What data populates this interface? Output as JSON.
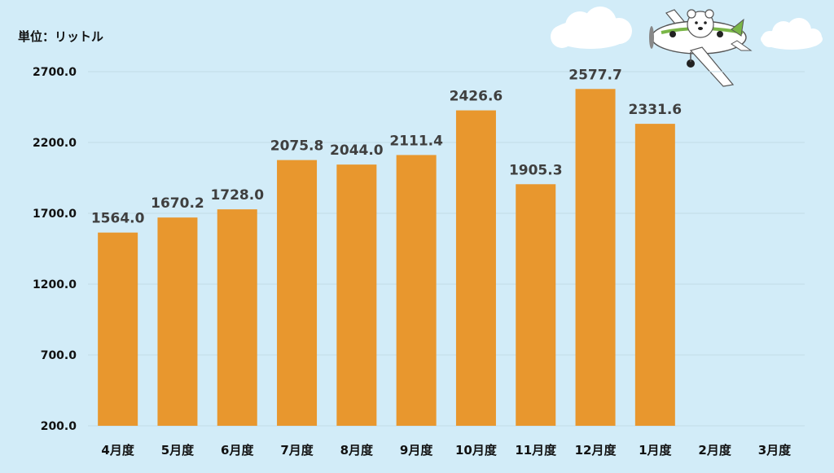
{
  "chart_data": {
    "type": "bar",
    "unit_label": "単位：リットル",
    "categories": [
      "4月度",
      "5月度",
      "6月度",
      "7月度",
      "8月度",
      "9月度",
      "10月度",
      "11月度",
      "12月度",
      "1月度",
      "2月度",
      "3月度"
    ],
    "values": [
      1564.0,
      1670.2,
      1728.0,
      2075.8,
      2044.0,
      2111.4,
      2426.6,
      1905.3,
      2577.7,
      2331.6,
      null,
      null
    ],
    "value_labels": [
      "1564.0",
      "1670.2",
      "1728.0",
      "2075.8",
      "2044.0",
      "2111.4",
      "2426.6",
      "1905.3",
      "2577.7",
      "2331.6",
      "",
      ""
    ],
    "y_ticks": [
      "200.0",
      "700.0",
      "1200.0",
      "1700.0",
      "2200.0",
      "2700.0"
    ],
    "y_tick_values": [
      200,
      700,
      1200,
      1700,
      2200,
      2700
    ],
    "ylim": [
      200,
      2700
    ],
    "grid": true,
    "legend": "none",
    "colors": {
      "background": "#d2ecf8",
      "bar": "#e8972e",
      "gridline": "#c3dbe6",
      "cloud": "#ffffff",
      "plane_body": "#ffffff",
      "plane_accent": "#7ab648"
    }
  },
  "decorations": {
    "icons": [
      "cloud-icon",
      "cloud-icon",
      "airplane-mascot-icon"
    ]
  }
}
